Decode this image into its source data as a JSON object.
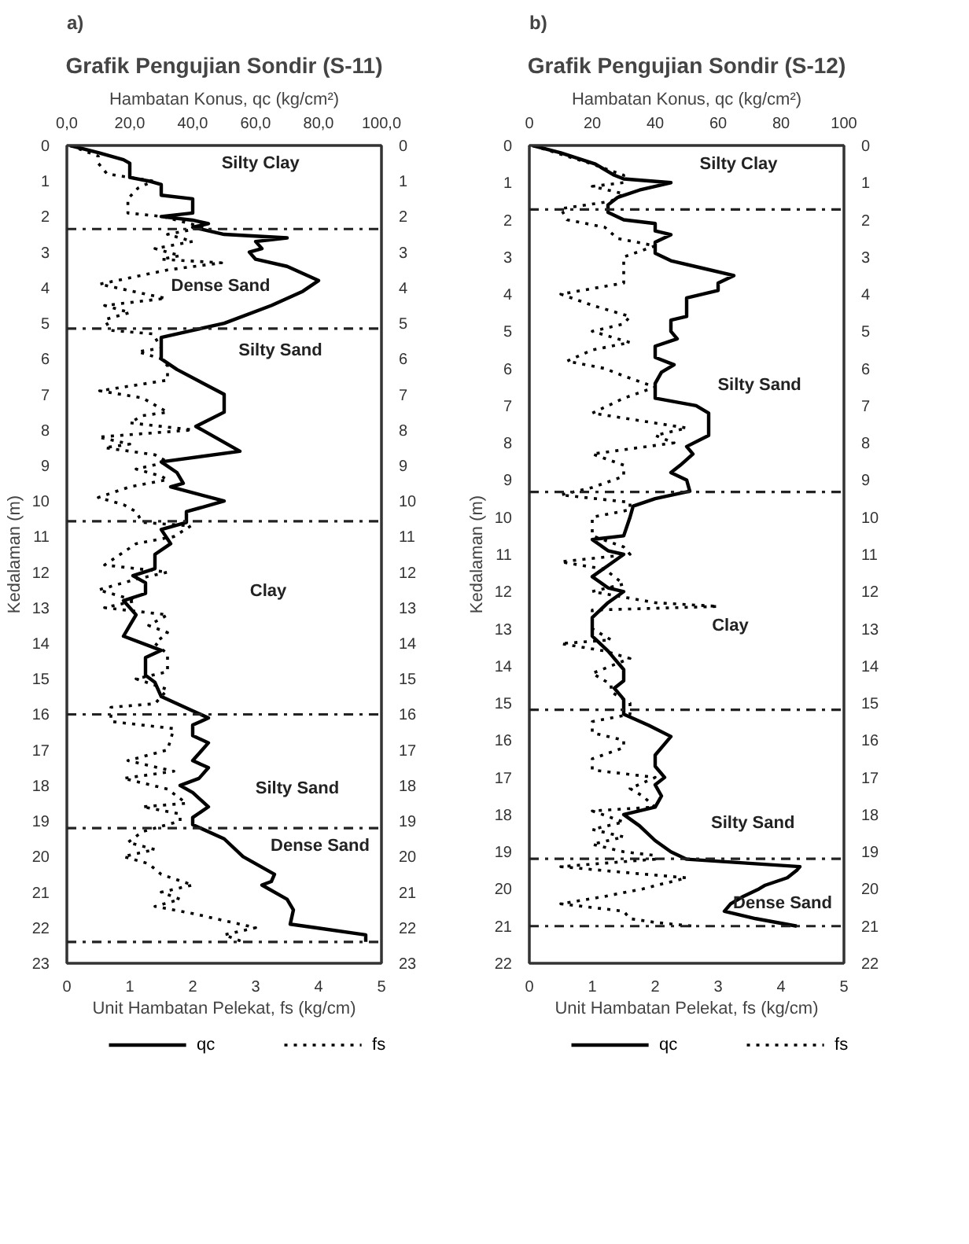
{
  "chart_data": [
    {
      "type": "line",
      "title": "Grafik Pengujian Sondir (S-11)",
      "x2label": "Hambatan Konus, qc (kg/cm²)",
      "xlabel": "Unit Hambatan Pelekat, fs (kg/cm)",
      "ylabel": "Kedalaman (m)",
      "annotations": [
        "a)",
        "Silty Clay",
        "Dense Sand",
        "Silty Sand",
        "Clay",
        "Silty Sand",
        "Dense Sand"
      ],
      "xlim": [
        0,
        5
      ],
      "xticks": [
        0,
        1,
        2,
        3,
        4,
        5
      ],
      "x2lim": [
        0,
        100
      ],
      "x2ticks": [
        {
          "value": 0,
          "label": "0,0"
        },
        {
          "value": 20,
          "label": "20,0"
        },
        {
          "value": 40,
          "label": "40,0"
        },
        {
          "value": 60,
          "label": "60,0"
        },
        {
          "value": 80,
          "label": "80,0"
        },
        {
          "value": 100,
          "label": "100,0"
        }
      ],
      "ylim": [
        23,
        0
      ],
      "yticks": [
        0,
        1,
        2,
        3,
        4,
        5,
        6,
        7,
        8,
        9,
        10,
        11,
        12,
        13,
        14,
        15,
        16,
        17,
        18,
        19,
        20,
        21,
        22,
        23
      ],
      "y2lim": [
        23,
        0
      ],
      "y2ticks": [
        0,
        1,
        2,
        3,
        4,
        5,
        6,
        7,
        8,
        9,
        10,
        11,
        12,
        13,
        14,
        15,
        16,
        17,
        18,
        19,
        20,
        21,
        22,
        23
      ],
      "grid": false,
      "legend": "bottom",
      "ref_lines": [
        {
          "axis": "y",
          "value": 2.35,
          "line_style": "dashdot"
        },
        {
          "axis": "y",
          "value": 5.15,
          "line_style": "dashdot"
        },
        {
          "axis": "y",
          "value": 10.57,
          "line_style": "dashdot"
        },
        {
          "axis": "y",
          "value": 16.0,
          "line_style": "dashdot"
        },
        {
          "axis": "y",
          "value": 19.2,
          "line_style": "dashdot"
        },
        {
          "axis": "y",
          "value": 22.4,
          "line_style": "dashdot"
        }
      ],
      "series": [
        {
          "name": "qc",
          "color": "#000000",
          "line_style": "solid",
          "axis": "x2",
          "x": [
            1,
            10,
            18,
            20,
            20,
            26,
            30,
            30,
            40,
            40,
            30,
            40,
            45,
            40,
            50,
            70,
            60,
            62,
            58,
            60,
            70,
            75,
            80,
            75,
            65,
            50,
            40,
            30,
            30,
            35,
            50,
            50,
            41,
            55,
            30,
            35,
            37,
            33,
            50,
            38,
            38,
            30,
            33,
            28,
            28,
            21,
            25,
            25,
            18,
            22,
            20,
            18,
            30,
            25,
            25,
            28,
            30,
            40,
            45,
            40,
            40,
            45,
            43,
            40,
            45,
            42,
            36,
            40,
            45,
            40,
            40,
            50,
            56,
            62,
            66,
            65,
            62,
            70,
            72,
            71,
            79,
            95,
            95
          ],
          "values": [
            0,
            0.2,
            0.4,
            0.5,
            0.9,
            1.0,
            1.1,
            1.4,
            1.5,
            1.9,
            2.0,
            2.1,
            2.2,
            2.3,
            2.5,
            2.6,
            2.7,
            2.9,
            3.0,
            3.2,
            3.4,
            3.6,
            3.8,
            4.1,
            4.5,
            5.0,
            5.2,
            5.4,
            6.0,
            6.3,
            7.0,
            7.5,
            7.9,
            8.6,
            8.9,
            9.2,
            9.5,
            9.6,
            10.0,
            10.3,
            10.6,
            10.8,
            11.2,
            11.5,
            11.9,
            12.1,
            12.3,
            12.6,
            12.8,
            13.2,
            13.5,
            13.8,
            14.2,
            14.4,
            14.9,
            15.1,
            15.5,
            15.9,
            16.1,
            16.3,
            16.6,
            16.8,
            17.0,
            17.3,
            17.5,
            17.8,
            18.0,
            18.2,
            18.6,
            18.9,
            19.1,
            19.5,
            20.0,
            20.3,
            20.5,
            20.7,
            20.8,
            21.2,
            21.5,
            21.9,
            22.0,
            22.2,
            22.4
          ]
        },
        {
          "name": "fs",
          "color": "#000000",
          "line_style": "dotted",
          "x": [
            0.05,
            0.5,
            0.5,
            0.64,
            1.37,
            1.13,
            0.97,
            0.97,
            1.53,
            2.17,
            1.6,
            2.0,
            1.4,
            1.8,
            1.5,
            2.46,
            1.6,
            0.52,
            1.57,
            0.6,
            1.0,
            0.6,
            0.7,
            1.37,
            1.5,
            1.13,
            1.5,
            1.6,
            1.6,
            0.52,
            1.2,
            1.6,
            1.2,
            1.0,
            2.0,
            0.5,
            1.0,
            0.6,
            1.4,
            1.6,
            1.1,
            1.5,
            1.6,
            1.0,
            0.5,
            0.9,
            1.1,
            1.2,
            1.97,
            1.7,
            1.1,
            0.6,
            1.6,
            1.1,
            0.5,
            1.1,
            0.6,
            1.6,
            1.3,
            1.6,
            1.4,
            1.6,
            1.6,
            1.1,
            1.6,
            1.4,
            0.7,
            0.7,
            1.7,
            1.6,
            0.97,
            1.7,
            0.9,
            1.6,
            1.9,
            1.2,
            1.8,
            1.8,
            1.2,
            0.97,
            1.4,
            0.9,
            1.3,
            1.5,
            2.0,
            1.5,
            1.8,
            1.4,
            2.0,
            3.0,
            2.5,
            2.8
          ],
          "values": [
            0,
            0.3,
            0.5,
            0.8,
            1.0,
            1.2,
            1.5,
            1.9,
            2.0,
            2.3,
            2.5,
            2.7,
            2.9,
            3.1,
            3.2,
            3.3,
            3.5,
            3.9,
            4.3,
            4.5,
            4.7,
            4.9,
            5.2,
            5.3,
            5.7,
            5.8,
            6.0,
            6.2,
            6.6,
            6.9,
            7.1,
            7.5,
            7.6,
            7.8,
            8.0,
            8.2,
            8.4,
            8.5,
            8.7,
            8.9,
            9.1,
            9.3,
            9.4,
            9.6,
            9.9,
            10.1,
            10.3,
            10.6,
            10.7,
            11.0,
            11.2,
            11.8,
            12.0,
            12.2,
            12.5,
            12.8,
            13.0,
            13.2,
            13.5,
            13.7,
            14.0,
            14.3,
            14.8,
            15.0,
            15.3,
            15.7,
            15.8,
            16.2,
            16.4,
            17.0,
            17.3,
            17.6,
            17.8,
            18.1,
            18.5,
            18.6,
            18.8,
            19.0,
            19.3,
            19.6,
            19.8,
            20.0,
            20.2,
            20.5,
            20.8,
            21.0,
            21.2,
            21.4,
            21.6,
            22.0,
            22.2,
            22.4
          ]
        }
      ]
    },
    {
      "type": "line",
      "title": "Grafik Pengujian Sondir (S-12)",
      "x2label": "Hambatan Konus, qc (kg/cm²)",
      "xlabel": "Unit Hambatan Pelekat, fs (kg/cm)",
      "ylabel": "Kedalaman (m)",
      "annotations": [
        "b)",
        "Silty Clay",
        "Silty Sand",
        "Clay",
        "Silty Sand",
        "Dense Sand"
      ],
      "xlim": [
        0,
        5
      ],
      "xticks": [
        0,
        1,
        2,
        3,
        4,
        5
      ],
      "x2lim": [
        0,
        100
      ],
      "x2ticks": [
        0,
        20,
        40,
        60,
        80,
        100
      ],
      "ylim": [
        22,
        0
      ],
      "yticks": [
        0,
        1,
        2,
        3,
        4,
        5,
        6,
        7,
        8,
        9,
        10,
        11,
        12,
        13,
        14,
        15,
        16,
        17,
        18,
        19,
        20,
        21,
        22
      ],
      "y2lim": [
        22,
        0
      ],
      "y2ticks": [
        0,
        1,
        2,
        3,
        4,
        5,
        6,
        7,
        8,
        9,
        10,
        11,
        12,
        13,
        14,
        15,
        16,
        17,
        18,
        19,
        20,
        21,
        22
      ],
      "grid": false,
      "legend": "bottom",
      "ref_lines": [
        {
          "axis": "y",
          "value": 1.72,
          "line_style": "dashdot"
        },
        {
          "axis": "y",
          "value": 9.32,
          "line_style": "dashdot"
        },
        {
          "axis": "y",
          "value": 15.18,
          "line_style": "dashdot"
        },
        {
          "axis": "y",
          "value": 19.19,
          "line_style": "dashdot"
        },
        {
          "axis": "y",
          "value": 21.0,
          "line_style": "dashdot"
        }
      ],
      "series": [
        {
          "name": "qc",
          "color": "#000000",
          "line_style": "solid",
          "axis": "x2",
          "x": [
            1,
            10,
            21,
            27,
            30,
            45,
            35,
            28,
            25,
            25,
            30,
            40,
            40,
            45,
            40,
            40,
            45,
            55,
            65,
            60,
            60,
            50,
            50,
            45,
            45,
            47,
            40,
            40,
            46,
            42,
            40,
            40,
            53,
            57,
            57,
            50,
            52,
            48,
            45,
            50,
            51,
            40,
            33,
            32,
            30,
            20,
            25,
            30,
            25,
            20,
            25,
            30,
            25,
            20,
            20,
            25,
            28,
            30,
            30,
            27,
            30,
            30,
            38,
            45,
            43,
            40,
            40,
            43,
            40,
            42,
            40,
            30,
            35,
            40,
            45,
            50,
            86,
            85,
            82,
            75,
            73,
            68,
            64,
            62,
            72,
            85
          ],
          "values": [
            0,
            0.2,
            0.5,
            0.8,
            0.9,
            1.0,
            1.2,
            1.4,
            1.6,
            1.8,
            2.0,
            2.1,
            2.3,
            2.4,
            2.6,
            2.9,
            3.1,
            3.3,
            3.5,
            3.7,
            3.9,
            4.1,
            4.6,
            4.7,
            5.0,
            5.2,
            5.4,
            5.7,
            5.9,
            6.1,
            6.4,
            6.8,
            7.0,
            7.2,
            7.8,
            8.1,
            8.3,
            8.6,
            8.8,
            9.0,
            9.3,
            9.5,
            9.7,
            10.0,
            10.5,
            10.6,
            10.9,
            11.0,
            11.3,
            11.6,
            11.9,
            12.0,
            12.3,
            12.7,
            13.2,
            13.6,
            13.9,
            14.1,
            14.4,
            14.6,
            14.9,
            15.3,
            15.6,
            15.9,
            16.1,
            16.4,
            16.7,
            17.0,
            17.2,
            17.5,
            17.8,
            18.0,
            18.3,
            18.7,
            19.0,
            19.2,
            19.4,
            19.5,
            19.7,
            19.9,
            20.0,
            20.2,
            20.4,
            20.6,
            20.8,
            21.0
          ]
        },
        {
          "name": "fs",
          "color": "#000000",
          "line_style": "dotted",
          "x": [
            0.05,
            1.0,
            1.5,
            1.5,
            1.0,
            1.5,
            1.3,
            0.5,
            0.6,
            1.2,
            1.4,
            2.0,
            1.5,
            1.5,
            1.5,
            0.5,
            1.0,
            1.6,
            1.5,
            1.0,
            1.6,
            1.0,
            0.6,
            1.2,
            1.5,
            2.0,
            1.5,
            1.0,
            2.5,
            2.0,
            2.3,
            1.0,
            1.5,
            1.5,
            1.0,
            0.5,
            1.6,
            1.6,
            1.0,
            1.0,
            1.5,
            1.6,
            0.5,
            1.2,
            1.5,
            1.0,
            2.0,
            3.0,
            1.0,
            1.0,
            1.3,
            0.5,
            1.2,
            1.6,
            1.0,
            1.3,
            1.3,
            1.6,
            1.6,
            1.0,
            1.0,
            1.5,
            1.5,
            1.0,
            1.0,
            2.0,
            1.6,
            1.8,
            2.0,
            1.0,
            1.5,
            1.0,
            1.5,
            1.0,
            1.5,
            2.0,
            2.0,
            0.5,
            1.8,
            2.5,
            1.8,
            1.2,
            0.5,
            1.5,
            1.6,
            2.0,
            2.6
          ],
          "values": [
            0,
            0.5,
            0.8,
            1.0,
            1.1,
            1.3,
            1.5,
            1.7,
            2.0,
            2.2,
            2.5,
            2.7,
            3.0,
            3.5,
            3.7,
            4.0,
            4.3,
            4.6,
            4.8,
            5.0,
            5.3,
            5.5,
            5.8,
            6.0,
            6.2,
            6.5,
            6.8,
            7.2,
            7.6,
            7.8,
            8.0,
            8.3,
            8.6,
            8.9,
            9.2,
            9.4,
            9.6,
            9.8,
            10.0,
            10.5,
            10.8,
            11.0,
            11.2,
            11.4,
            11.8,
            12.0,
            12.3,
            12.4,
            12.5,
            13.0,
            13.3,
            13.4,
            13.6,
            13.8,
            14.2,
            14.5,
            14.7,
            15.0,
            15.3,
            15.5,
            15.8,
            16.0,
            16.2,
            16.5,
            16.8,
            17.0,
            17.3,
            17.5,
            17.8,
            17.9,
            18.2,
            18.4,
            18.6,
            18.8,
            19.0,
            19.1,
            19.2,
            19.4,
            19.6,
            19.7,
            20.0,
            20.2,
            20.4,
            20.6,
            20.8,
            20.9,
            21.0
          ]
        }
      ]
    }
  ]
}
